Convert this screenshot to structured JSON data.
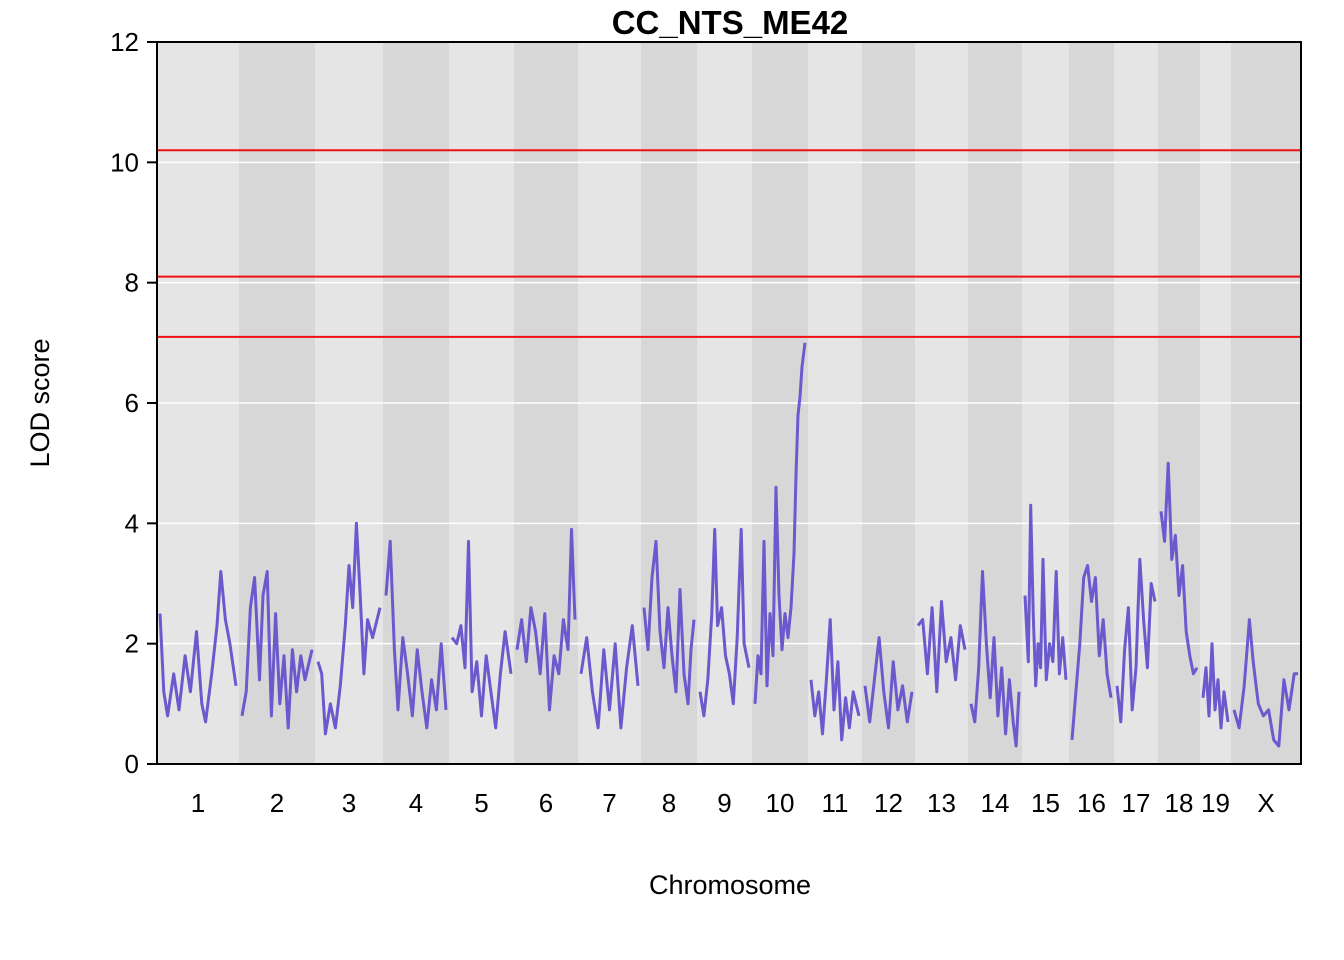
{
  "chart_data": {
    "type": "line",
    "title": "CC_NTS_ME42",
    "xlabel": "Chromosome",
    "ylabel": "LOD score",
    "ylim": [
      0,
      12
    ],
    "yticks": [
      0,
      2,
      4,
      6,
      8,
      10,
      12
    ],
    "grid": true,
    "line_color": "#6a5acd",
    "threshold_color": "#ee1111",
    "thresholds": [
      10.2,
      8.1,
      7.1
    ],
    "chromosomes": [
      {
        "label": "1",
        "points": [
          [
            0,
            2.5
          ],
          [
            0.05,
            1.2
          ],
          [
            0.1,
            0.8
          ],
          [
            0.18,
            1.5
          ],
          [
            0.25,
            0.9
          ],
          [
            0.33,
            1.8
          ],
          [
            0.4,
            1.2
          ],
          [
            0.48,
            2.2
          ],
          [
            0.55,
            1.0
          ],
          [
            0.6,
            0.7
          ],
          [
            0.68,
            1.5
          ],
          [
            0.75,
            2.3
          ],
          [
            0.8,
            3.2
          ],
          [
            0.86,
            2.4
          ],
          [
            0.92,
            2.0
          ],
          [
            1,
            1.3
          ]
        ]
      },
      {
        "label": "2",
        "points": [
          [
            0,
            0.8
          ],
          [
            0.06,
            1.2
          ],
          [
            0.12,
            2.6
          ],
          [
            0.18,
            3.1
          ],
          [
            0.25,
            1.4
          ],
          [
            0.3,
            2.8
          ],
          [
            0.36,
            3.2
          ],
          [
            0.42,
            0.8
          ],
          [
            0.48,
            2.5
          ],
          [
            0.54,
            1.0
          ],
          [
            0.6,
            1.8
          ],
          [
            0.66,
            0.6
          ],
          [
            0.72,
            1.9
          ],
          [
            0.78,
            1.2
          ],
          [
            0.84,
            1.8
          ],
          [
            0.9,
            1.4
          ],
          [
            1,
            1.9
          ]
        ]
      },
      {
        "label": "3",
        "points": [
          [
            0,
            1.7
          ],
          [
            0.06,
            1.5
          ],
          [
            0.12,
            0.5
          ],
          [
            0.2,
            1.0
          ],
          [
            0.28,
            0.6
          ],
          [
            0.36,
            1.3
          ],
          [
            0.44,
            2.3
          ],
          [
            0.5,
            3.3
          ],
          [
            0.56,
            2.6
          ],
          [
            0.62,
            4.0
          ],
          [
            0.68,
            2.8
          ],
          [
            0.74,
            1.5
          ],
          [
            0.8,
            2.4
          ],
          [
            0.88,
            2.1
          ],
          [
            1,
            2.6
          ]
        ]
      },
      {
        "label": "4",
        "points": [
          [
            0,
            2.8
          ],
          [
            0.07,
            3.7
          ],
          [
            0.14,
            1.9
          ],
          [
            0.2,
            0.9
          ],
          [
            0.28,
            2.1
          ],
          [
            0.36,
            1.5
          ],
          [
            0.44,
            0.8
          ],
          [
            0.52,
            1.9
          ],
          [
            0.6,
            1.2
          ],
          [
            0.68,
            0.6
          ],
          [
            0.76,
            1.4
          ],
          [
            0.84,
            0.9
          ],
          [
            0.92,
            2.0
          ],
          [
            1,
            0.9
          ]
        ]
      },
      {
        "label": "5",
        "points": [
          [
            0,
            2.1
          ],
          [
            0.08,
            2.0
          ],
          [
            0.15,
            2.3
          ],
          [
            0.22,
            1.6
          ],
          [
            0.28,
            3.7
          ],
          [
            0.34,
            1.2
          ],
          [
            0.42,
            1.7
          ],
          [
            0.5,
            0.8
          ],
          [
            0.58,
            1.8
          ],
          [
            0.66,
            1.2
          ],
          [
            0.74,
            0.6
          ],
          [
            0.82,
            1.5
          ],
          [
            0.9,
            2.2
          ],
          [
            1,
            1.5
          ]
        ]
      },
      {
        "label": "6",
        "points": [
          [
            0,
            1.9
          ],
          [
            0.08,
            2.4
          ],
          [
            0.16,
            1.7
          ],
          [
            0.24,
            2.6
          ],
          [
            0.32,
            2.2
          ],
          [
            0.4,
            1.5
          ],
          [
            0.48,
            2.5
          ],
          [
            0.56,
            0.9
          ],
          [
            0.64,
            1.8
          ],
          [
            0.72,
            1.5
          ],
          [
            0.8,
            2.4
          ],
          [
            0.88,
            1.9
          ],
          [
            0.94,
            3.9
          ],
          [
            1,
            2.4
          ]
        ]
      },
      {
        "label": "7",
        "points": [
          [
            0,
            1.5
          ],
          [
            0.1,
            2.1
          ],
          [
            0.2,
            1.2
          ],
          [
            0.3,
            0.6
          ],
          [
            0.4,
            1.9
          ],
          [
            0.5,
            0.9
          ],
          [
            0.6,
            2.0
          ],
          [
            0.7,
            0.6
          ],
          [
            0.8,
            1.6
          ],
          [
            0.9,
            2.3
          ],
          [
            1,
            1.3
          ]
        ]
      },
      {
        "label": "8",
        "points": [
          [
            0,
            2.6
          ],
          [
            0.08,
            1.9
          ],
          [
            0.16,
            3.1
          ],
          [
            0.24,
            3.7
          ],
          [
            0.32,
            2.2
          ],
          [
            0.4,
            1.6
          ],
          [
            0.48,
            2.6
          ],
          [
            0.56,
            1.8
          ],
          [
            0.64,
            1.2
          ],
          [
            0.72,
            2.9
          ],
          [
            0.8,
            1.5
          ],
          [
            0.88,
            1.0
          ],
          [
            0.94,
            1.9
          ],
          [
            1,
            2.4
          ]
        ]
      },
      {
        "label": "9",
        "points": [
          [
            0,
            1.2
          ],
          [
            0.08,
            0.8
          ],
          [
            0.16,
            1.4
          ],
          [
            0.24,
            2.5
          ],
          [
            0.3,
            3.9
          ],
          [
            0.36,
            2.3
          ],
          [
            0.44,
            2.6
          ],
          [
            0.52,
            1.8
          ],
          [
            0.6,
            1.5
          ],
          [
            0.68,
            1.0
          ],
          [
            0.76,
            2.1
          ],
          [
            0.84,
            3.9
          ],
          [
            0.9,
            2.0
          ],
          [
            1,
            1.6
          ]
        ]
      },
      {
        "label": "10",
        "points": [
          [
            0,
            1.0
          ],
          [
            0.06,
            1.8
          ],
          [
            0.12,
            1.5
          ],
          [
            0.18,
            3.7
          ],
          [
            0.24,
            1.3
          ],
          [
            0.3,
            2.5
          ],
          [
            0.36,
            1.8
          ],
          [
            0.42,
            4.6
          ],
          [
            0.48,
            2.8
          ],
          [
            0.54,
            1.9
          ],
          [
            0.6,
            2.5
          ],
          [
            0.66,
            2.1
          ],
          [
            0.72,
            2.6
          ],
          [
            0.78,
            3.5
          ],
          [
            0.82,
            4.8
          ],
          [
            0.86,
            5.8
          ],
          [
            0.9,
            6.1
          ],
          [
            0.94,
            6.6
          ],
          [
            1,
            7.0
          ]
        ]
      },
      {
        "label": "11",
        "points": [
          [
            0,
            1.4
          ],
          [
            0.08,
            0.8
          ],
          [
            0.16,
            1.2
          ],
          [
            0.24,
            0.5
          ],
          [
            0.32,
            1.4
          ],
          [
            0.4,
            2.4
          ],
          [
            0.48,
            0.9
          ],
          [
            0.56,
            1.7
          ],
          [
            0.64,
            0.4
          ],
          [
            0.72,
            1.1
          ],
          [
            0.8,
            0.6
          ],
          [
            0.88,
            1.2
          ],
          [
            1,
            0.8
          ]
        ]
      },
      {
        "label": "12",
        "points": [
          [
            0,
            1.3
          ],
          [
            0.1,
            0.7
          ],
          [
            0.2,
            1.4
          ],
          [
            0.3,
            2.1
          ],
          [
            0.4,
            1.2
          ],
          [
            0.5,
            0.6
          ],
          [
            0.6,
            1.7
          ],
          [
            0.7,
            0.9
          ],
          [
            0.8,
            1.3
          ],
          [
            0.9,
            0.7
          ],
          [
            1,
            1.2
          ]
        ]
      },
      {
        "label": "13",
        "points": [
          [
            0,
            2.3
          ],
          [
            0.1,
            2.4
          ],
          [
            0.2,
            1.5
          ],
          [
            0.3,
            2.6
          ],
          [
            0.4,
            1.2
          ],
          [
            0.5,
            2.7
          ],
          [
            0.6,
            1.7
          ],
          [
            0.7,
            2.1
          ],
          [
            0.8,
            1.4
          ],
          [
            0.9,
            2.3
          ],
          [
            1,
            1.9
          ]
        ]
      },
      {
        "label": "14",
        "points": [
          [
            0,
            1.0
          ],
          [
            0.08,
            0.7
          ],
          [
            0.16,
            1.6
          ],
          [
            0.24,
            3.2
          ],
          [
            0.32,
            2.0
          ],
          [
            0.4,
            1.1
          ],
          [
            0.48,
            2.1
          ],
          [
            0.56,
            0.8
          ],
          [
            0.64,
            1.6
          ],
          [
            0.72,
            0.5
          ],
          [
            0.8,
            1.4
          ],
          [
            0.88,
            0.7
          ],
          [
            0.94,
            0.3
          ],
          [
            1,
            1.2
          ]
        ]
      },
      {
        "label": "15",
        "points": [
          [
            0,
            2.8
          ],
          [
            0.08,
            1.7
          ],
          [
            0.14,
            4.3
          ],
          [
            0.2,
            2.5
          ],
          [
            0.26,
            1.3
          ],
          [
            0.32,
            2.0
          ],
          [
            0.38,
            1.6
          ],
          [
            0.44,
            3.4
          ],
          [
            0.52,
            1.4
          ],
          [
            0.6,
            2.0
          ],
          [
            0.68,
            1.7
          ],
          [
            0.76,
            3.2
          ],
          [
            0.84,
            1.5
          ],
          [
            0.92,
            2.1
          ],
          [
            1,
            1.4
          ]
        ]
      },
      {
        "label": "16",
        "points": [
          [
            0,
            0.4
          ],
          [
            0.1,
            1.2
          ],
          [
            0.2,
            2.0
          ],
          [
            0.3,
            3.1
          ],
          [
            0.4,
            3.3
          ],
          [
            0.5,
            2.7
          ],
          [
            0.6,
            3.1
          ],
          [
            0.7,
            1.8
          ],
          [
            0.8,
            2.4
          ],
          [
            0.9,
            1.5
          ],
          [
            1,
            1.1
          ]
        ]
      },
      {
        "label": "17",
        "points": [
          [
            0,
            1.3
          ],
          [
            0.1,
            0.7
          ],
          [
            0.2,
            1.9
          ],
          [
            0.3,
            2.6
          ],
          [
            0.4,
            0.9
          ],
          [
            0.5,
            1.6
          ],
          [
            0.6,
            3.4
          ],
          [
            0.7,
            2.4
          ],
          [
            0.8,
            1.6
          ],
          [
            0.9,
            3.0
          ],
          [
            1,
            2.7
          ]
        ]
      },
      {
        "label": "18",
        "points": [
          [
            0,
            4.2
          ],
          [
            0.1,
            3.7
          ],
          [
            0.2,
            5.0
          ],
          [
            0.3,
            3.4
          ],
          [
            0.4,
            3.8
          ],
          [
            0.5,
            2.8
          ],
          [
            0.6,
            3.3
          ],
          [
            0.7,
            2.2
          ],
          [
            0.8,
            1.8
          ],
          [
            0.9,
            1.5
          ],
          [
            1,
            1.6
          ]
        ]
      },
      {
        "label": "19",
        "points": [
          [
            0,
            1.1
          ],
          [
            0.12,
            1.6
          ],
          [
            0.24,
            0.8
          ],
          [
            0.36,
            2.0
          ],
          [
            0.48,
            0.9
          ],
          [
            0.6,
            1.4
          ],
          [
            0.72,
            0.6
          ],
          [
            0.84,
            1.2
          ],
          [
            1,
            0.7
          ]
        ]
      },
      {
        "label": "X",
        "points": [
          [
            0,
            0.9
          ],
          [
            0.08,
            0.6
          ],
          [
            0.16,
            1.3
          ],
          [
            0.24,
            2.4
          ],
          [
            0.3,
            1.7
          ],
          [
            0.38,
            1.0
          ],
          [
            0.46,
            0.8
          ],
          [
            0.54,
            0.9
          ],
          [
            0.62,
            0.4
          ],
          [
            0.7,
            0.3
          ],
          [
            0.78,
            1.4
          ],
          [
            0.86,
            0.9
          ],
          [
            0.94,
            1.5
          ],
          [
            1,
            1.5
          ]
        ]
      }
    ]
  }
}
